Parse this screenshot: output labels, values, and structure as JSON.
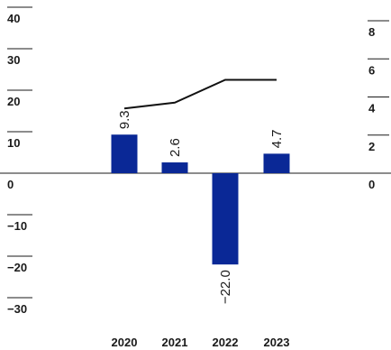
{
  "chart_data": {
    "type": "bar",
    "categories": [
      "2020",
      "2021",
      "2022",
      "2023"
    ],
    "series": [
      {
        "type": "bar",
        "axis": "left",
        "values": [
          9.3,
          2.6,
          -22.0,
          4.7
        ],
        "data_labels": [
          "9.3",
          "2.6",
          "−22.0",
          "4.7"
        ],
        "color": "#0a2896"
      },
      {
        "type": "line",
        "axis": "right",
        "values": [
          3.4,
          3.7,
          4.9,
          4.9
        ],
        "color": "#111111"
      }
    ],
    "y_left": {
      "ylim": [
        -30,
        40
      ],
      "ticks": [
        40,
        30,
        20,
        10,
        0,
        -10,
        -20,
        -30
      ],
      "tick_labels": [
        "40",
        "30",
        "20",
        "10",
        "0",
        "−10",
        "−20",
        "−30"
      ]
    },
    "y_right": {
      "ylim": [
        0,
        8
      ],
      "ticks": [
        8,
        6,
        4,
        2,
        0
      ],
      "tick_labels": [
        "8",
        "6",
        "4",
        "2",
        "0"
      ]
    },
    "title": "",
    "xlabel": "",
    "ylabel": "",
    "grid": false,
    "legend": "none"
  }
}
